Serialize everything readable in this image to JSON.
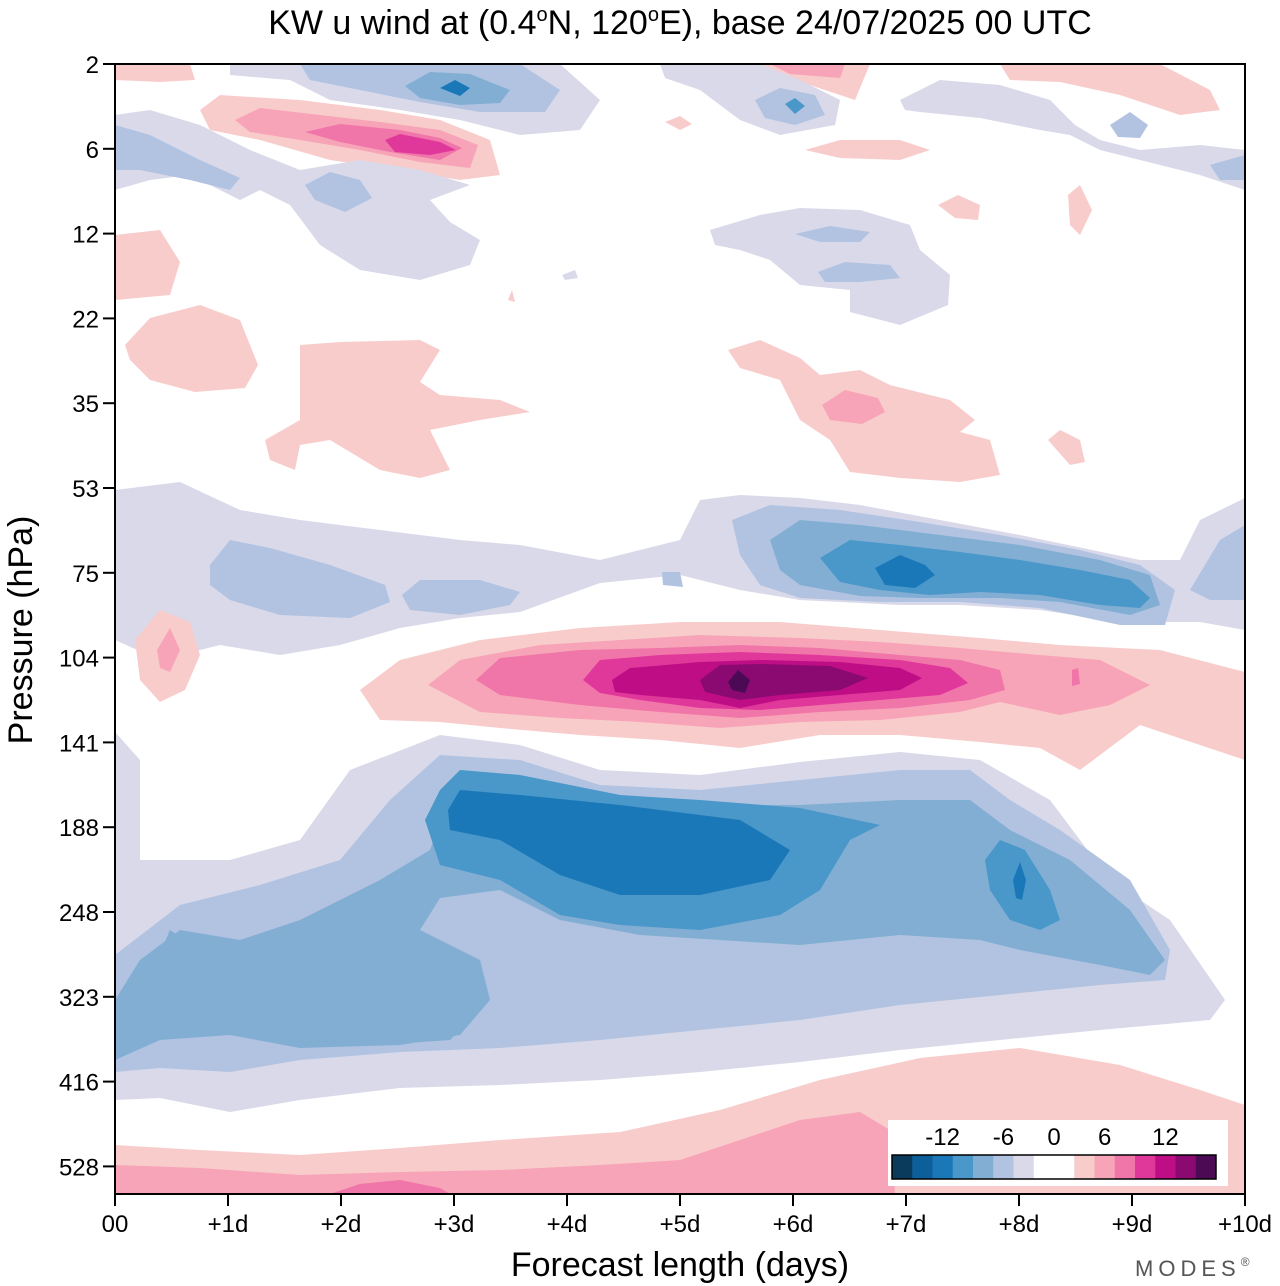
{
  "chart_data": {
    "type": "heatmap",
    "title": "KW u wind at (0.4°N, 120°E),  base 24/07/2025  00 UTC",
    "title_parts": {
      "prefix": "KW u wind at (0.4",
      "deg1": "o",
      "mid": "N, 120",
      "deg2": "o",
      "suffix": "E),  base 24/07/2025  00 UTC"
    },
    "xlabel": "Forecast length (days)",
    "ylabel": "Pressure (hPa)",
    "x_ticks": [
      "00",
      "+1d",
      "+2d",
      "+3d",
      "+4d",
      "+5d",
      "+6d",
      "+7d",
      "+8d",
      "+9d",
      "+10d"
    ],
    "x_range_days": [
      0,
      10
    ],
    "y_ticks": [
      "2",
      "6",
      "12",
      "22",
      "35",
      "53",
      "75",
      "104",
      "141",
      "188",
      "248",
      "323",
      "416",
      "528"
    ],
    "colorbar": {
      "tick_labels": [
        "-12",
        "-6",
        "0",
        "6",
        "12"
      ],
      "levels": [
        -16,
        -14,
        -12,
        -10,
        -8,
        -6,
        -4,
        -2,
        2,
        4,
        6,
        8,
        10,
        12,
        14,
        16
      ],
      "colors": [
        "#0a3b5c",
        "#0c5f9a",
        "#1a78b8",
        "#4a97c9",
        "#82aed4",
        "#b1c3e0",
        "#d9d9ea",
        "#ffffff",
        "#ffffff",
        "#f9cccc",
        "#f7a4b8",
        "#f075a8",
        "#e0389a",
        "#bf0d85",
        "#8b0a72",
        "#4c0a55"
      ]
    },
    "contours": [
      {
        "value": -2,
        "regions": [
          "Lower tropospheric easterly band (about 140-416 hPa) across the whole forecast",
          "Band near 53-104 hPa across the whole forecast",
          "Patches near 2-22 hPa"
        ]
      },
      {
        "value": -12,
        "regions": [
          "Core near 188 hPa between +3d and +6d",
          "Core near 75 hPa between +7d and +9d"
        ]
      },
      {
        "value": 14,
        "regions": [
          "Westerly maximum near 110 hPa at about +5.5d"
        ]
      },
      {
        "value": 4,
        "regions": [
          "Westerly band near 104-141 hPa from +2d to +10d",
          "Near-surface westerlies below 416 hPa after +5d",
          "Patches between 22 and 53 hPa",
          "Patches near 2-6 hPa"
        ]
      }
    ]
  },
  "branding": {
    "logo": "MODES",
    "logo_mark": "®"
  }
}
